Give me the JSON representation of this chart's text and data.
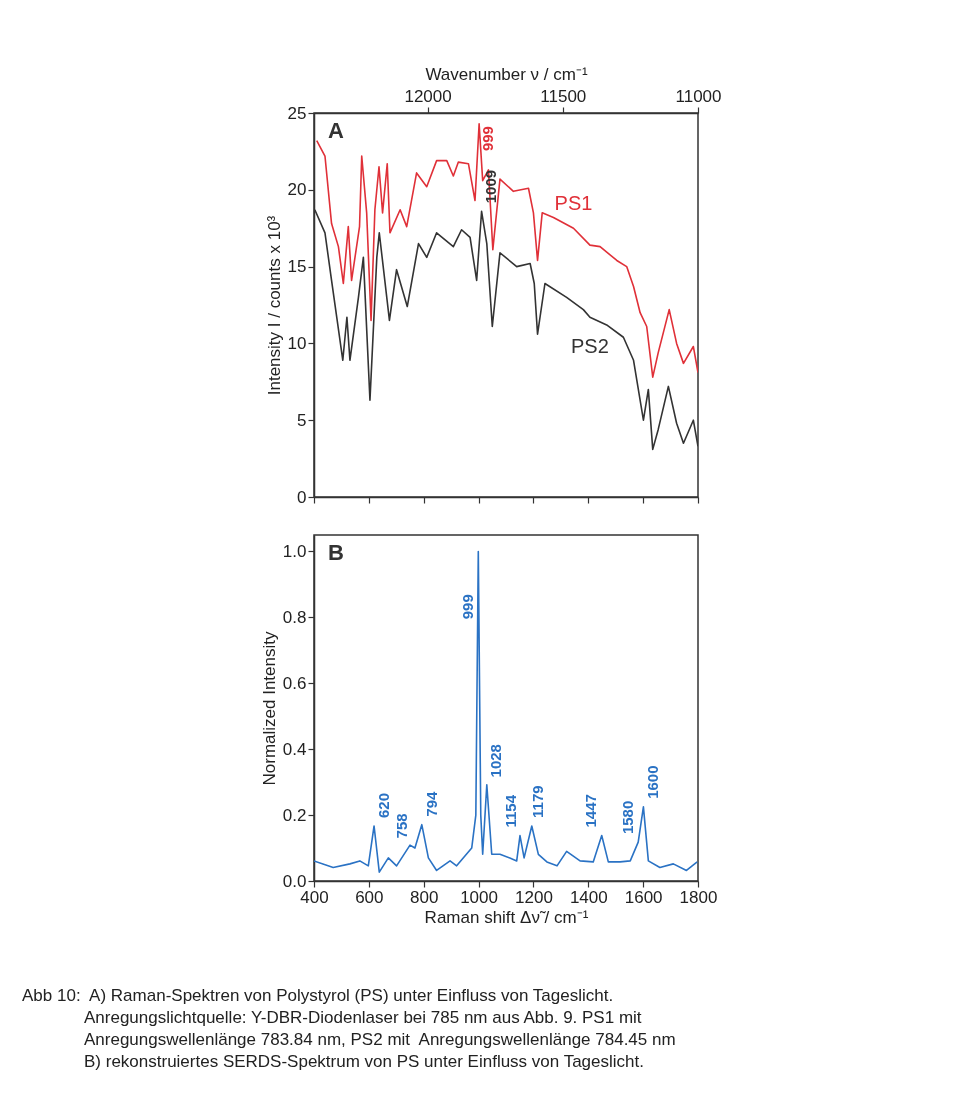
{
  "chart_data": [
    {
      "type": "line",
      "x2label": "Wavenumber ν / cm⁻¹",
      "ylabel": "Intensity I / counts x 10³",
      "xlim": [
        400,
        1800
      ],
      "xticks": [
        400,
        600,
        800,
        1000,
        1200,
        1400,
        1600,
        1800
      ],
      "x2lim": [
        12420,
        11000
      ],
      "x2ticks": [
        12000,
        11500,
        11000
      ],
      "ylim": [
        0,
        25
      ],
      "yticks": [
        0,
        5,
        10,
        15,
        20,
        25
      ],
      "tick_labels": "y",
      "grid": false,
      "series": [
        {
          "name": "PS1",
          "color": "#e03038",
          "x": [
            410,
            440,
            464,
            489,
            507,
            525,
            537,
            566,
            574,
            592,
            608,
            622,
            637,
            650,
            667,
            677,
            714,
            738,
            774,
            811,
            847,
            884,
            908,
            926,
            963,
            987,
            1002,
            1015,
            1036,
            1052,
            1078,
            1127,
            1182,
            1200,
            1215,
            1232,
            1273,
            1346,
            1406,
            1443,
            1504,
            1540,
            1565,
            1589,
            1613,
            1635,
            1655,
            1695,
            1722,
            1747,
            1783,
            1800
          ],
          "values": [
            23.2,
            22.2,
            17.8,
            16.3,
            13.9,
            17.6,
            14.1,
            17.6,
            22.2,
            18.5,
            11.5,
            18.7,
            21.5,
            18.5,
            21.7,
            17.2,
            18.7,
            17.6,
            21.1,
            20.2,
            21.9,
            21.9,
            20.9,
            21.8,
            21.7,
            19.3,
            24.3,
            20.6,
            21.3,
            16.1,
            20.7,
            19.9,
            20.1,
            18.5,
            15.4,
            18.5,
            18.2,
            17.5,
            16.4,
            16.3,
            15.4,
            15.0,
            13.7,
            12.0,
            11.1,
            7.8,
            9.4,
            12.2,
            10.0,
            8.7,
            9.8,
            8.1
          ]
        },
        {
          "name": "PS2",
          "color": "#333333",
          "x": [
            403,
            440,
            464,
            483,
            505,
            520,
            531,
            562,
            580,
            604,
            629,
            638,
            675,
            701,
            740,
            781,
            811,
            847,
            908,
            938,
            969,
            993,
            1011,
            1030,
            1050,
            1078,
            1139,
            1188,
            1203,
            1215,
            1242,
            1321,
            1382,
            1406,
            1467,
            1528,
            1565,
            1601,
            1619,
            1635,
            1655,
            1692,
            1722,
            1747,
            1783,
            1800
          ],
          "values": [
            18.7,
            17.2,
            14.1,
            11.7,
            8.9,
            11.7,
            8.9,
            13.0,
            15.6,
            6.3,
            15.6,
            17.2,
            11.5,
            14.8,
            12.4,
            16.5,
            15.6,
            17.2,
            16.3,
            17.4,
            16.9,
            14.1,
            18.6,
            16.5,
            11.1,
            15.9,
            15.0,
            15.2,
            13.9,
            10.6,
            13.9,
            13.0,
            12.2,
            11.7,
            11.2,
            10.4,
            8.9,
            5.0,
            7.0,
            3.1,
            4.4,
            7.2,
            4.8,
            3.5,
            5.0,
            3.3
          ]
        }
      ],
      "annotations": [
        "A",
        {
          "text": "999",
          "x": 999,
          "y": 22
        },
        {
          "text": "1009",
          "x": 1009,
          "y": 18.6
        }
      ]
    },
    {
      "type": "line",
      "xlabel": "Raman shift Δν̃ / cm⁻¹",
      "ylabel": "Normalized Intensity",
      "xlim": [
        400,
        1800
      ],
      "xticks": [
        400,
        600,
        800,
        1000,
        1200,
        1400,
        1600,
        1800
      ],
      "ylim": [
        0,
        1.05
      ],
      "yticks": [
        {
          "value": 0,
          "label": "0.0"
        },
        {
          "value": 0.2,
          "label": "0.2"
        },
        {
          "value": 0.4,
          "label": "0.4"
        },
        {
          "value": 0.6,
          "label": "0.6"
        },
        {
          "value": 0.8,
          "label": "0.8"
        },
        {
          "value": 1,
          "label": "1.0"
        }
      ],
      "grid": false,
      "series": [
        {
          "color": "#2a72c4",
          "x": [
            400,
            470,
            531,
            567,
            598,
            619,
            638,
            671,
            701,
            750,
            768,
            793,
            817,
            847,
            896,
            920,
            944,
            975,
            990,
            999,
            1008,
            1015,
            1030,
            1048,
            1078,
            1114,
            1139,
            1151,
            1166,
            1194,
            1218,
            1249,
            1286,
            1321,
            1370,
            1418,
            1449,
            1473,
            1516,
            1553,
            1582,
            1601,
            1619,
            1661,
            1710,
            1758,
            1797
          ],
          "values": [
            0.061,
            0.041,
            0.052,
            0.061,
            0.046,
            0.167,
            0.027,
            0.07,
            0.046,
            0.109,
            0.1,
            0.171,
            0.07,
            0.032,
            0.061,
            0.046,
            0.07,
            0.1,
            0.2,
            1.0,
            0.2,
            0.081,
            0.292,
            0.081,
            0.081,
            0.07,
            0.061,
            0.138,
            0.07,
            0.167,
            0.081,
            0.058,
            0.046,
            0.09,
            0.061,
            0.058,
            0.138,
            0.058,
            0.058,
            0.061,
            0.118,
            0.225,
            0.061,
            0.041,
            0.052,
            0.032,
            0.058
          ]
        }
      ],
      "annotations": [
        "B",
        {
          "text": "620",
          "x": 620,
          "y": 0.167
        },
        {
          "text": "758",
          "x": 758,
          "y": 0.105
        },
        {
          "text": "794",
          "x": 794,
          "y": 0.171
        },
        {
          "text": "999",
          "x": 999,
          "y": 0.77
        },
        {
          "text": "1028",
          "x": 1028,
          "y": 0.29
        },
        {
          "text": "1154",
          "x": 1154,
          "y": 0.138
        },
        {
          "text": "1179",
          "x": 1179,
          "y": 0.167
        },
        {
          "text": "1447",
          "x": 1447,
          "y": 0.138
        },
        {
          "text": "1580",
          "x": 1580,
          "y": 0.118
        },
        {
          "text": "1600",
          "x": 1600,
          "y": 0.225
        },
        "Abb 10:  A) Raman-Spektren von Polystyrol (PS) unter Einfluss von Tageslicht.\nAnregungslichtquelle: Y-DBR-Diodenlaser bei 785 nm aus Abb. 9. PS1 mit\nAnregungswellenlänge 783.84 nm, PS2 mit  Anregungswellenlänge 784.45 nm\nB) rekonstruiertes SERDS-Spektrum von PS unter Einfluss von Tageslicht."
      ]
    }
  ]
}
